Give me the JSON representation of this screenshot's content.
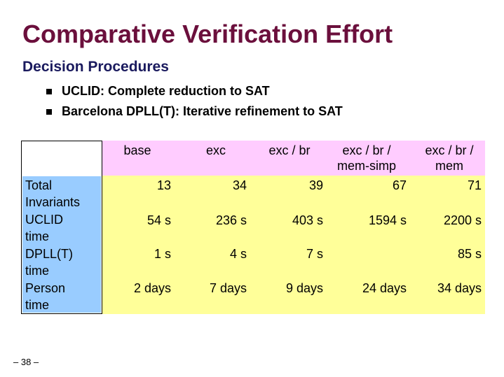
{
  "slide": {
    "title": "Comparative Verification Effort",
    "subtitle": "Decision Procedures",
    "bullets": [
      "UCLID: Complete reduction to SAT",
      "Barcelona DPLL(T): Iterative refinement to SAT"
    ],
    "page_number": "– 38 –"
  },
  "table": {
    "columns": [
      "base",
      "exc",
      "exc / br",
      "exc / br /\nmem-simp",
      "exc / br /\nmem"
    ],
    "row_labels": [
      "Total\nInvariants",
      "UCLID\ntime",
      "DPLL(T)\ntime",
      "Person\ntime"
    ],
    "rows": [
      [
        "13",
        "34",
        "39",
        "67",
        "71"
      ],
      [
        "54 s",
        "236 s",
        "403 s",
        "1594 s",
        "2200 s"
      ],
      [
        "1 s",
        "4 s",
        "7 s",
        "",
        "85 s"
      ],
      [
        "2 days",
        "7 days",
        "9 days",
        "24 days",
        "34 days"
      ]
    ]
  },
  "colors": {
    "title": "#6b0f3c",
    "subtitle": "#1a1a5e",
    "row_header_bg": "#99ccff",
    "column_header_bg": "#ffccff",
    "data_bg": "#ffff99"
  }
}
